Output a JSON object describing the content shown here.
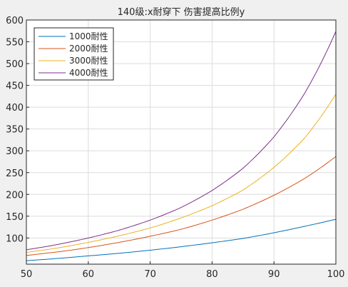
{
  "chart_data": {
    "type": "line",
    "title": "140级:x耐穿下 伤害提高比例y",
    "xlabel": "",
    "ylabel": "",
    "xlim": [
      50,
      100
    ],
    "ylim": [
      40,
      600
    ],
    "x_ticks": [
      50,
      60,
      70,
      80,
      90,
      100
    ],
    "y_ticks": [
      100,
      150,
      200,
      250,
      300,
      350,
      400,
      450,
      500,
      550,
      600
    ],
    "grid": true,
    "legend_position": "top-left",
    "x": [
      50,
      55,
      60,
      65,
      70,
      75,
      80,
      85,
      90,
      95,
      100
    ],
    "series": [
      {
        "name": "1000耐性",
        "color": "#0072bd",
        "values": [
          48,
          53,
          59,
          65,
          72,
          80,
          89,
          99,
          112,
          127,
          143
        ]
      },
      {
        "name": "2000耐性",
        "color": "#d95319",
        "values": [
          60,
          68,
          78,
          90,
          104,
          120,
          141,
          166,
          198,
          237,
          287
        ]
      },
      {
        "name": "3000耐性",
        "color": "#edb120",
        "values": [
          67,
          77,
          90,
          105,
          123,
          146,
          174,
          210,
          262,
          330,
          430
        ]
      },
      {
        "name": "4000耐性",
        "color": "#7e2f8e",
        "values": [
          73,
          85,
          100,
          118,
          141,
          170,
          209,
          260,
          332,
          433,
          574
        ]
      }
    ]
  }
}
